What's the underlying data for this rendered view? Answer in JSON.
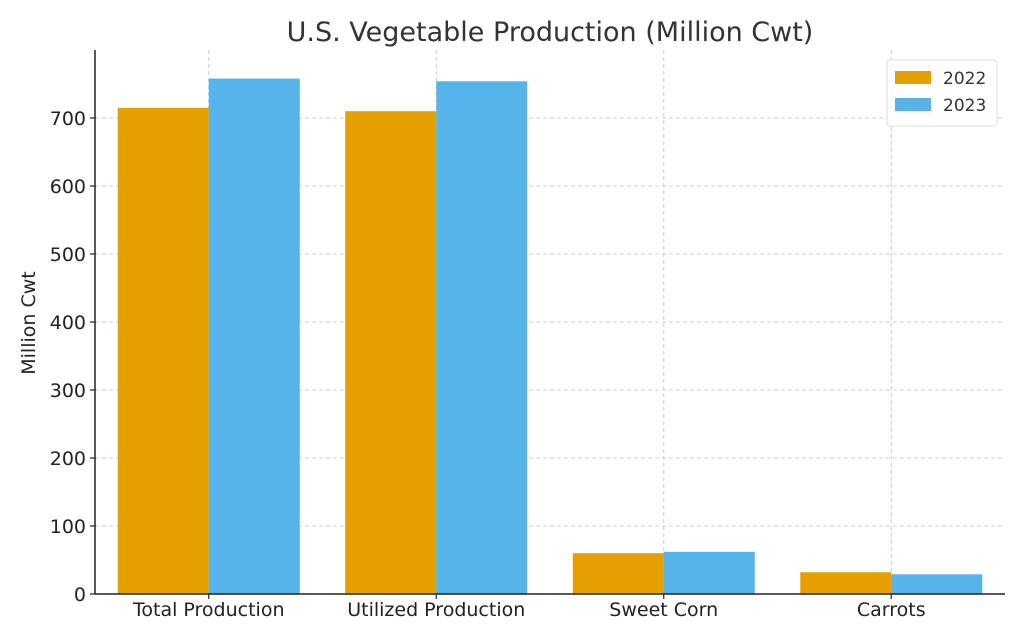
{
  "chart_data": {
    "type": "bar",
    "title": "U.S. Vegetable Production (Million Cwt)",
    "xlabel": "",
    "ylabel": "Million Cwt",
    "categories": [
      "Total Production",
      "Utilized Production",
      "Sweet Corn",
      "Carrots"
    ],
    "series": [
      {
        "name": "2022",
        "values": [
          715,
          710,
          60,
          32
        ],
        "color": "#E69F00"
      },
      {
        "name": "2023",
        "values": [
          758,
          754,
          62,
          29
        ],
        "color": "#56B4E9"
      }
    ],
    "ylim": [
      0,
      800
    ],
    "yticks": [
      0,
      100,
      200,
      300,
      400,
      500,
      600,
      700
    ],
    "grid": true,
    "legend_position": "top-right"
  }
}
